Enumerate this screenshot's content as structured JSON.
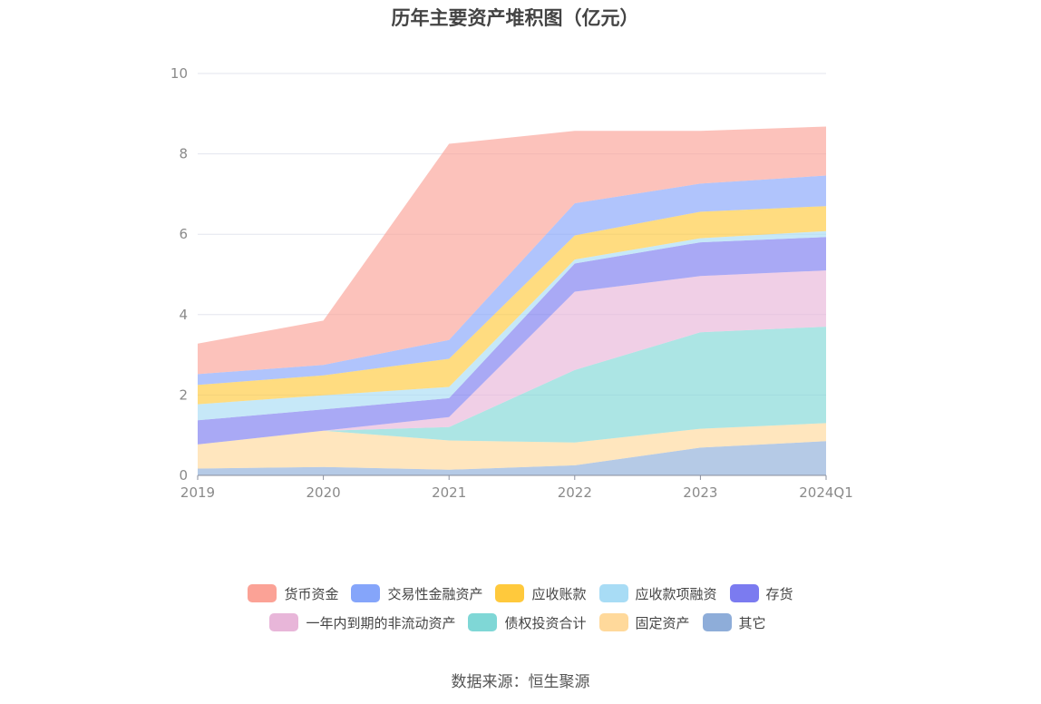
{
  "chart_data": {
    "type": "area",
    "stacked": true,
    "title": "历年主要资产堆积图（亿元）",
    "xlabel": "",
    "ylabel": "",
    "x": [
      "2019",
      "2020",
      "2021",
      "2022",
      "2023",
      "2024Q1"
    ],
    "ylim": [
      0,
      10
    ],
    "yticks": [
      0,
      2,
      4,
      6,
      8,
      10
    ],
    "grid": true,
    "legend_position": "bottom",
    "series": [
      {
        "name": "其它",
        "color": "#8eadd9",
        "values": [
          0.17,
          0.21,
          0.14,
          0.25,
          0.69,
          0.85
        ]
      },
      {
        "name": "固定资产",
        "color": "#ffd99b",
        "values": [
          0.6,
          0.9,
          0.73,
          0.57,
          0.47,
          0.45
        ]
      },
      {
        "name": "债权投资合计",
        "color": "#7fd7d6",
        "values": [
          0.0,
          0.0,
          0.33,
          1.8,
          2.4,
          2.4
        ]
      },
      {
        "name": "一年内到期的非流动资产",
        "color": "#e8b6d9",
        "values": [
          0.0,
          0.0,
          0.25,
          1.95,
          1.4,
          1.4
        ]
      },
      {
        "name": "存货",
        "color": "#7b7bf0",
        "values": [
          0.6,
          0.53,
          0.47,
          0.7,
          0.84,
          0.83
        ]
      },
      {
        "name": "应收款项融资",
        "color": "#a8dcf5",
        "values": [
          0.4,
          0.35,
          0.28,
          0.1,
          0.1,
          0.15
        ]
      },
      {
        "name": "应收账款",
        "color": "#ffc93c",
        "values": [
          0.48,
          0.5,
          0.7,
          0.6,
          0.66,
          0.62
        ]
      },
      {
        "name": "交易性金融资产",
        "color": "#85a5fa",
        "values": [
          0.27,
          0.26,
          0.47,
          0.8,
          0.7,
          0.76
        ]
      },
      {
        "name": "货币资金",
        "color": "#fba296",
        "values": [
          0.76,
          1.1,
          4.88,
          1.8,
          1.31,
          1.22
        ]
      }
    ],
    "legend_order": [
      "货币资金",
      "交易性金融资产",
      "应收账款",
      "应收款项融资",
      "存货",
      "一年内到期的非流动资产",
      "债权投资合计",
      "固定资产",
      "其它"
    ],
    "source": "数据来源：恒生聚源"
  }
}
